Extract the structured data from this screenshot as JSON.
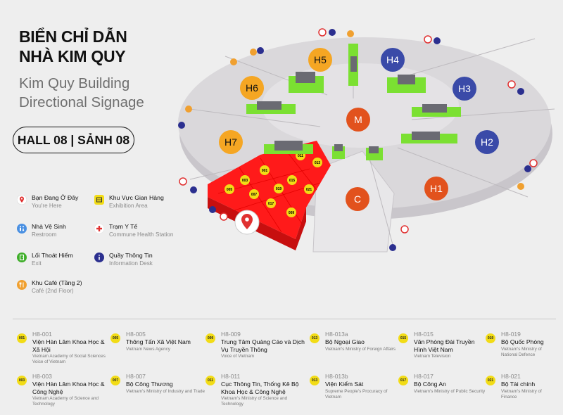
{
  "header": {
    "title_vi_1": "BIỂN CHỈ DẪN",
    "title_vi_2": "NHÀ KIM QUY",
    "title_en_1": "Kim Quy Building",
    "title_en_2": "Directional Signage",
    "hall": "HALL 08 | SẢNH 08"
  },
  "legend": [
    {
      "icon": "you-are-here-pin-icon",
      "vi": "Bạn Đang Ở Đây",
      "en": "You're Here",
      "color": "#e03131"
    },
    {
      "icon": "exhibition-area-icon",
      "vi": "Khu Vực Gian Hàng",
      "en": "Exhibition Area",
      "color": "#f2dc16"
    },
    {
      "icon": "restroom-icon",
      "vi": "Nhà Vệ Sinh",
      "en": "Restroom",
      "color": "#4a90e2"
    },
    {
      "icon": "health-station-icon",
      "vi": "Trạm Y Tế",
      "en": "Commune Health Station",
      "color": "#e03131"
    },
    {
      "icon": "exit-icon",
      "vi": "Lối Thoát Hiểm",
      "en": "Exit",
      "color": "#3fae2a"
    },
    {
      "icon": "information-desk-icon",
      "vi": "Quầy Thông Tin",
      "en": "Information Desk",
      "color": "#2b2f8f"
    },
    {
      "icon": "cafe-icon",
      "vi": "Khu Café (Tầng 2)",
      "en": "Café (2nd Floor)",
      "color": "#f0a030"
    }
  ],
  "map": {
    "halls": [
      "H1",
      "H2",
      "H3",
      "H4",
      "H5",
      "H6",
      "H7",
      "M",
      "C"
    ],
    "booths": [
      "001",
      "003",
      "005",
      "007",
      "009",
      "011",
      "013",
      "015",
      "017",
      "019",
      "021"
    ],
    "colors": {
      "hall_orange": "#f5a623",
      "hall_blue": "#3a4aa8",
      "center_red": "#e2521d",
      "booth_red": "#ff1a1a",
      "booth_yellow": "#f2dc16",
      "block_green": "#7be032",
      "floor": "#d9d7da"
    }
  },
  "tenants": [
    {
      "code": "H8-001",
      "badge": "001",
      "name": "Viện Hàn Lâm Khoa Học & Xã Hội",
      "en": "Vietnam Academy of Social Sciences Voice of Vietnam"
    },
    {
      "code": "H8-005",
      "badge": "005",
      "name": "Thông Tấn Xã Việt Nam",
      "en": "Vietnam News Agency"
    },
    {
      "code": "H8-009",
      "badge": "009",
      "name": "Trung Tâm Quảng Cáo và Dịch Vụ Truyền Thông",
      "en": "Voice of Vietnam"
    },
    {
      "code": "H8-013a",
      "badge": "013",
      "name": "Bộ Ngoại Giao",
      "en": "Vietnam's Ministry of Foreign Affairs"
    },
    {
      "code": "H8-015",
      "badge": "015",
      "name": "Văn Phòng Đài Truyền Hình Việt Nam",
      "en": "Vietnam Television"
    },
    {
      "code": "H8-019",
      "badge": "019",
      "name": "Bộ Quốc Phòng",
      "en": "Vietnam's Ministry of National Defence"
    },
    {
      "code": "H8-003",
      "badge": "003",
      "name": "Viện Hàn Lâm Khoa Học & Công Nghệ",
      "en": "Vietnam Academy of Science and Technology"
    },
    {
      "code": "H8-007",
      "badge": "007",
      "name": "Bộ Công Thương",
      "en": "Vietnam's Ministry of Industry and Trade"
    },
    {
      "code": "H8-011",
      "badge": "011",
      "name": "Cục Thông Tin, Thống Kê Bộ Khoa Học & Công Nghệ",
      "en": "Vietnam's Ministry of Science and Technology"
    },
    {
      "code": "H8-013b",
      "badge": "013",
      "name": "Viện Kiểm Sát",
      "en": "Supreme People's Procuracy of Vietnam"
    },
    {
      "code": "H8-017",
      "badge": "017",
      "name": "Bộ Công An",
      "en": "Vietnam's Ministry of Public Security"
    },
    {
      "code": "H8-021",
      "badge": "021",
      "name": "Bộ Tài chính",
      "en": "Vietnam's Ministry of Finance"
    }
  ]
}
